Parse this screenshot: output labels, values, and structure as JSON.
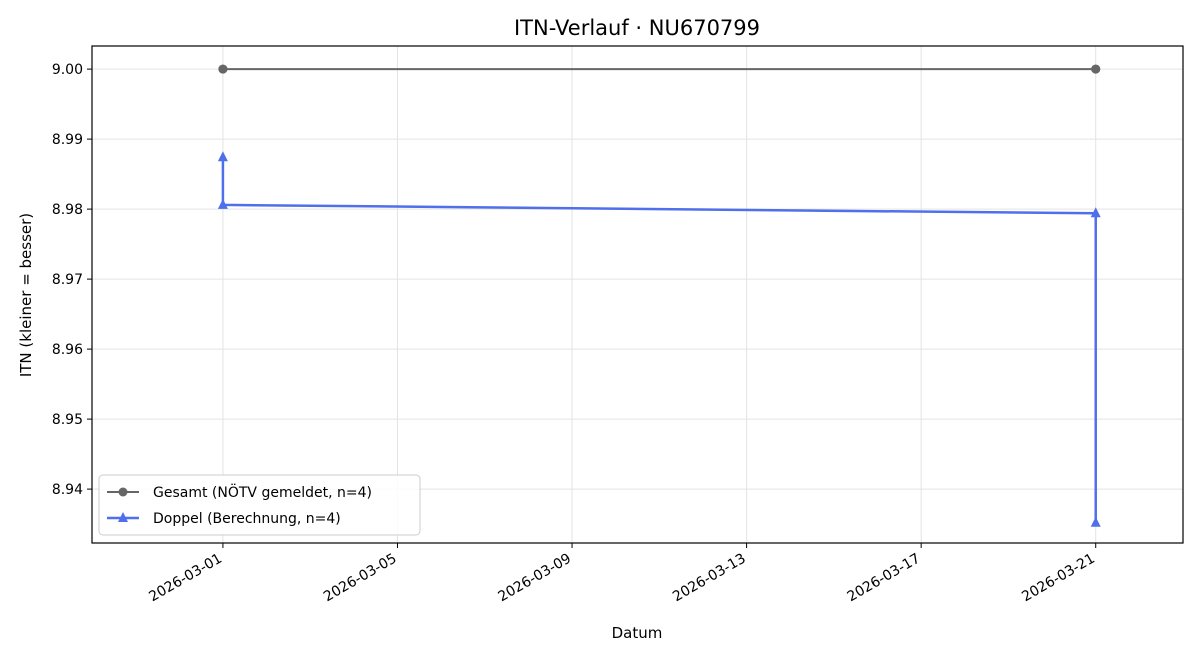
{
  "chart_data": {
    "type": "line",
    "title": "ITN-Verlauf · NU670799",
    "xlabel": "Datum",
    "ylabel": "ITN  (kleiner = besser)",
    "xlim": [
      "2026-02-26",
      "2026-03-23"
    ],
    "ylim": [
      8.9323,
      9.0033
    ],
    "x_ticks": [
      "2026-03-01",
      "2026-03-05",
      "2026-03-09",
      "2026-03-13",
      "2026-03-17",
      "2026-03-21"
    ],
    "y_ticks": [
      8.94,
      8.95,
      8.96,
      8.97,
      8.98,
      8.99,
      9.0
    ],
    "y_tick_labels": [
      "8.94",
      "8.95",
      "8.96",
      "8.97",
      "8.98",
      "8.99",
      "9.00"
    ],
    "grid": true,
    "legend_position": "lower-left",
    "series": [
      {
        "name": "Gesamt (NÖTV gemeldet, n=4)",
        "color": "#666666",
        "marker": "circle",
        "points": [
          {
            "x": "2026-03-01",
            "y": 9.0
          },
          {
            "x": "2026-03-01",
            "y": 9.0
          },
          {
            "x": "2026-03-21",
            "y": 9.0
          },
          {
            "x": "2026-03-21",
            "y": 9.0
          }
        ]
      },
      {
        "name": "Doppel (Berechnung, n=4)",
        "color": "#4F6FEB",
        "marker": "triangle",
        "points": [
          {
            "x": "2026-03-01",
            "y": 8.9874
          },
          {
            "x": "2026-03-01",
            "y": 8.9806
          },
          {
            "x": "2026-03-21",
            "y": 8.9794
          },
          {
            "x": "2026-03-21",
            "y": 8.9352
          }
        ]
      }
    ]
  }
}
